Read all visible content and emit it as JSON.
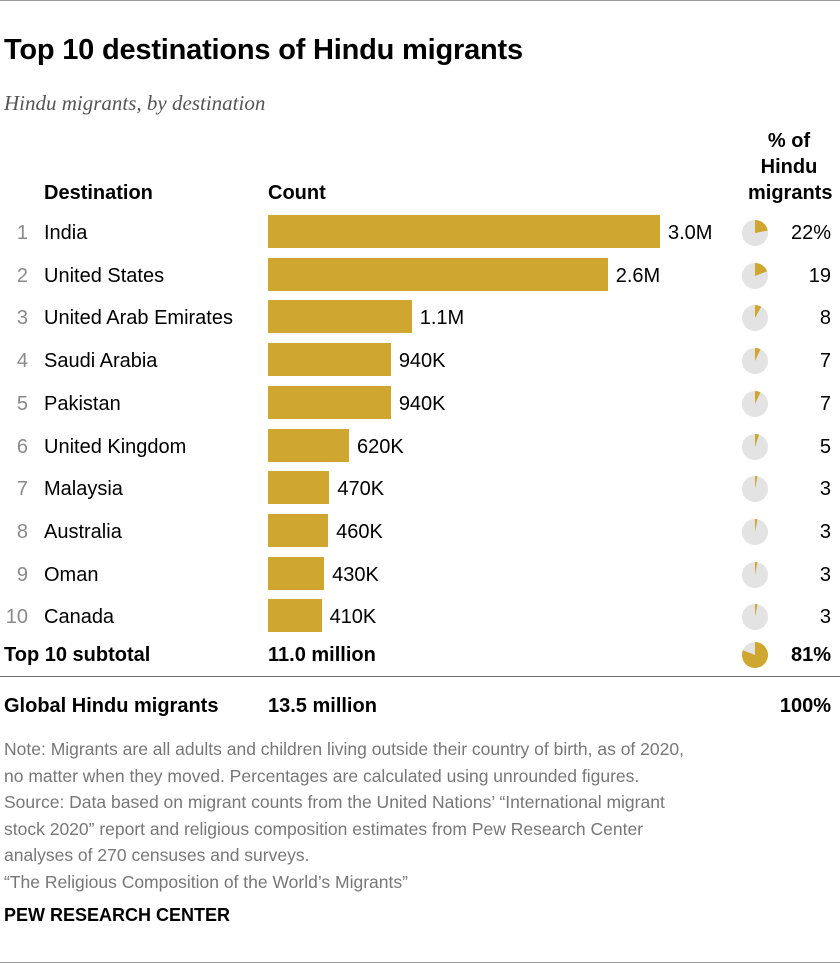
{
  "title": "Top 10 destinations of Hindu migrants",
  "subtitle": "Hindu migrants, by destination",
  "headers": {
    "destination": "Destination",
    "count": "Count",
    "pct_line1": "% of",
    "pct_line2": "Hindu",
    "pct_line3": "migrants"
  },
  "chart_data": {
    "type": "bar",
    "categories": [
      "India",
      "United States",
      "United Arab Emirates",
      "Saudi Arabia",
      "Pakistan",
      "United Kingdom",
      "Malaysia",
      "Australia",
      "Oman",
      "Canada"
    ],
    "ranks": [
      "1",
      "2",
      "3",
      "4",
      "5",
      "6",
      "7",
      "8",
      "9",
      "10"
    ],
    "values": [
      3000000,
      2600000,
      1100000,
      940000,
      940000,
      620000,
      470000,
      460000,
      430000,
      410000
    ],
    "value_labels": [
      "3.0M",
      "2.6M",
      "1.1M",
      "940K",
      "940K",
      "620K",
      "470K",
      "460K",
      "430K",
      "410K"
    ],
    "percent_values": [
      22,
      19,
      8,
      7,
      7,
      5,
      3,
      3,
      3,
      3
    ],
    "percent_labels": [
      "22%",
      "19",
      "8",
      "7",
      "7",
      "5",
      "3",
      "3",
      "3",
      "3"
    ],
    "xlim": [
      0,
      3000000
    ]
  },
  "subtotal": {
    "label": "Top 10 subtotal",
    "value": "11.0 million",
    "percent_value": 81,
    "percent_label": "81%"
  },
  "global": {
    "label": "Global Hindu migrants",
    "value": "13.5 million",
    "percent_label": "100%"
  },
  "notes": {
    "line1": "Note: Migrants are all adults and children living outside their country of birth, as of 2020,",
    "line2": "no matter when they moved. Percentages are calculated using unrounded figures.",
    "line3": "Source: Data based on migrant counts from the United Nations’ “International migrant",
    "line4": "stock 2020” report and religious composition estimates from Pew Research Center",
    "line5": "analyses of 270 censuses and surveys.",
    "line6": "“The Religious Composition of the World’s Migrants”"
  },
  "brand": "PEW RESEARCH CENTER",
  "colors": {
    "bar": "#cfa62f",
    "pie_bg": "#e3e3e3"
  }
}
